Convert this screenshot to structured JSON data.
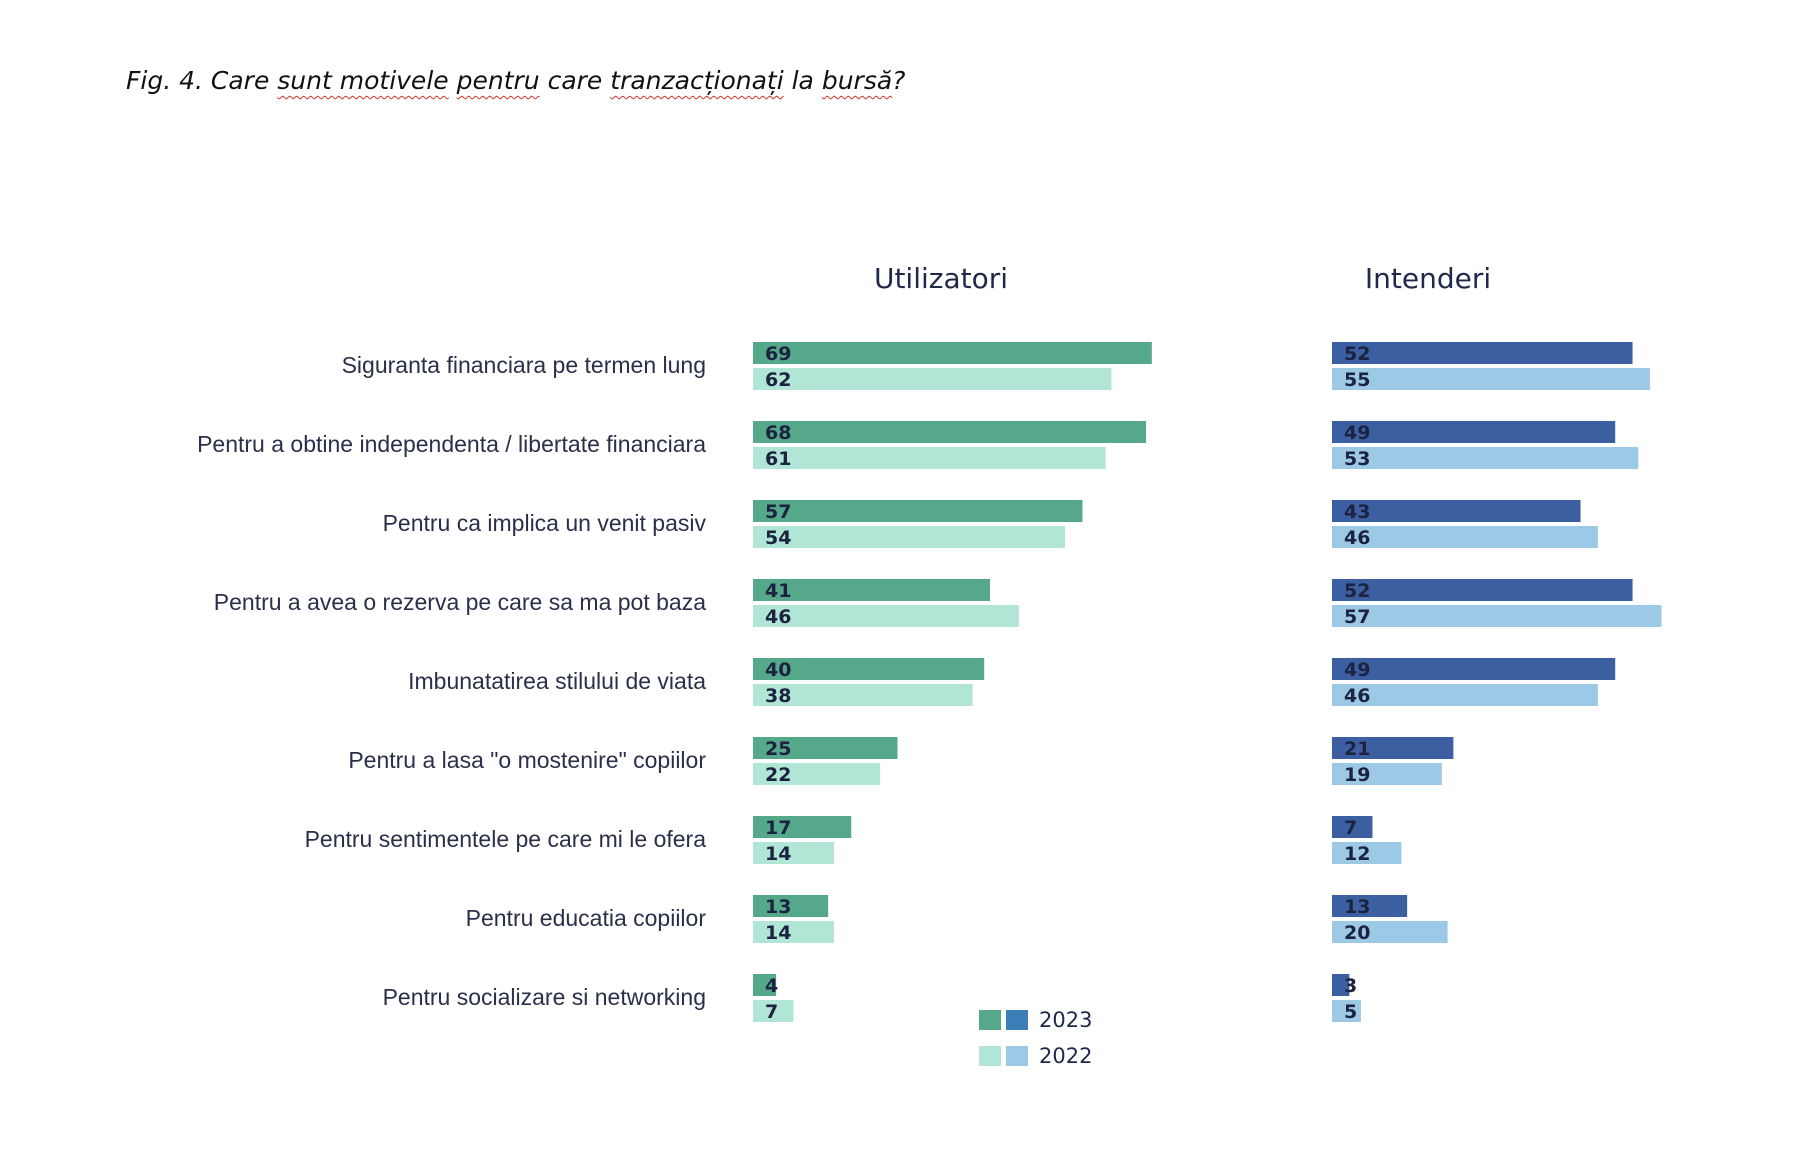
{
  "title": {
    "parts": [
      {
        "text": "Fig. 4. Care ",
        "squiggle": false
      },
      {
        "text": "sunt motivele",
        "squiggle": true
      },
      {
        "text": " ",
        "squiggle": false
      },
      {
        "text": "pentru",
        "squiggle": true
      },
      {
        "text": " care ",
        "squiggle": false
      },
      {
        "text": "tranzacționați",
        "squiggle": true
      },
      {
        "text": " la ",
        "squiggle": false
      },
      {
        "text": "bursă",
        "squiggle": true
      },
      {
        "text": "?",
        "squiggle": false
      }
    ]
  },
  "chart_data": {
    "type": "bar",
    "orientation": "horizontal",
    "categories": [
      "Siguranta financiara pe termen lung",
      "Pentru a obtine independenta / libertate financiara",
      "Pentru ca implica un venit pasiv",
      "Pentru a avea o rezerva pe care sa ma pot baza",
      "Imbunatatirea stilului de viata",
      "Pentru a lasa \"o mostenire\" copiilor",
      "Pentru sentimentele pe care mi le ofera",
      "Pentru educatia copiilor",
      "Pentru socializare si networking"
    ],
    "panels": [
      {
        "title": "Utilizatori",
        "series": [
          {
            "name": "2023",
            "color": "#55a88a",
            "values": [
              69,
              68,
              57,
              41,
              40,
              25,
              17,
              13,
              4
            ]
          },
          {
            "name": "2022",
            "color": "#b1e5d6",
            "values": [
              62,
              61,
              54,
              46,
              38,
              22,
              14,
              14,
              7
            ]
          }
        ]
      },
      {
        "title": "Intenderi",
        "series": [
          {
            "name": "2023",
            "color": "#3c5fa2",
            "values": [
              52,
              49,
              43,
              52,
              49,
              21,
              7,
              13,
              3
            ]
          },
          {
            "name": "2022",
            "color": "#9cc9e6",
            "values": [
              55,
              53,
              46,
              57,
              46,
              19,
              12,
              20,
              5
            ]
          }
        ]
      }
    ],
    "legend": {
      "position": "bottom-center",
      "entries": [
        {
          "label": "2023",
          "colors": [
            "#55a88a",
            "#3c7fb8"
          ]
        },
        {
          "label": "2022",
          "colors": [
            "#b1e5d6",
            "#9cc9e6"
          ]
        }
      ]
    },
    "value_labels": true,
    "grid": false
  }
}
